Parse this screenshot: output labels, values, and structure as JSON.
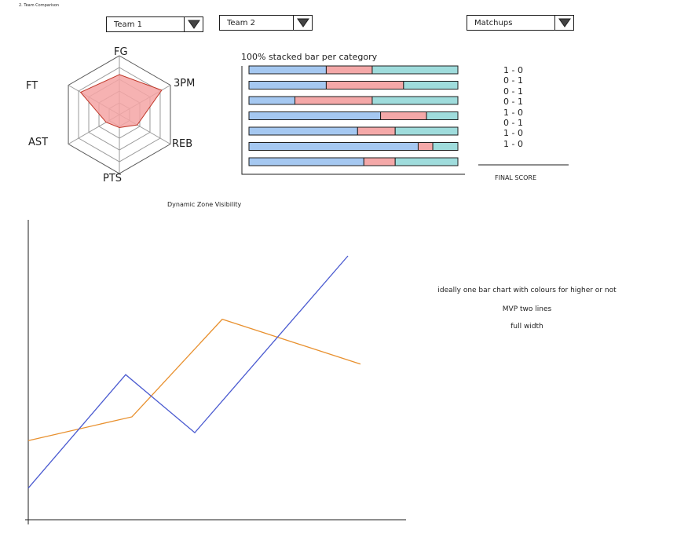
{
  "page_title": "2. Team Comparison",
  "controls": {
    "team1_label": "Team 1",
    "team2_label": "Team 2",
    "matchups_label": "Matchups"
  },
  "radar": {
    "axes": [
      "FG",
      "3PM",
      "REB",
      "PTS",
      "AST",
      "FT"
    ],
    "rings": 5,
    "values": [
      0.68,
      0.83,
      0.35,
      0.22,
      0.26,
      0.76
    ],
    "fill_color": "#f4a4a4",
    "stroke_color": "#c0392b"
  },
  "stacked": {
    "title": "100% stacked bar per category",
    "colors": {
      "a": "#a5c8f1",
      "b": "#f4a8a8",
      "c": "#9fdcdc"
    },
    "rows": [
      [
        37,
        22,
        41
      ],
      [
        37,
        37,
        26
      ],
      [
        22,
        37,
        41
      ],
      [
        63,
        22,
        15
      ],
      [
        52,
        18,
        30
      ],
      [
        81,
        7,
        12
      ],
      [
        55,
        15,
        30
      ]
    ]
  },
  "matchups": {
    "scores": [
      "1 - 0",
      "0 - 1",
      "0 - 1",
      "0 - 1",
      "1 - 0",
      "0 - 1",
      "1 - 0",
      "1 - 0"
    ],
    "final_label": "FINAL SCORE"
  },
  "line_chart": {
    "title": "Dynamic Zone Visibility",
    "colors": {
      "series1": "#4a5ad0",
      "series2": "#e8902e"
    },
    "series1": [
      0.12,
      0.55,
      0.33,
      1.0
    ],
    "series2": [
      0.3,
      0.39,
      0.76,
      0.59
    ]
  },
  "notes": [
    "ideally one bar chart with colours for higher or not",
    "MVP two lines",
    "full width"
  ]
}
